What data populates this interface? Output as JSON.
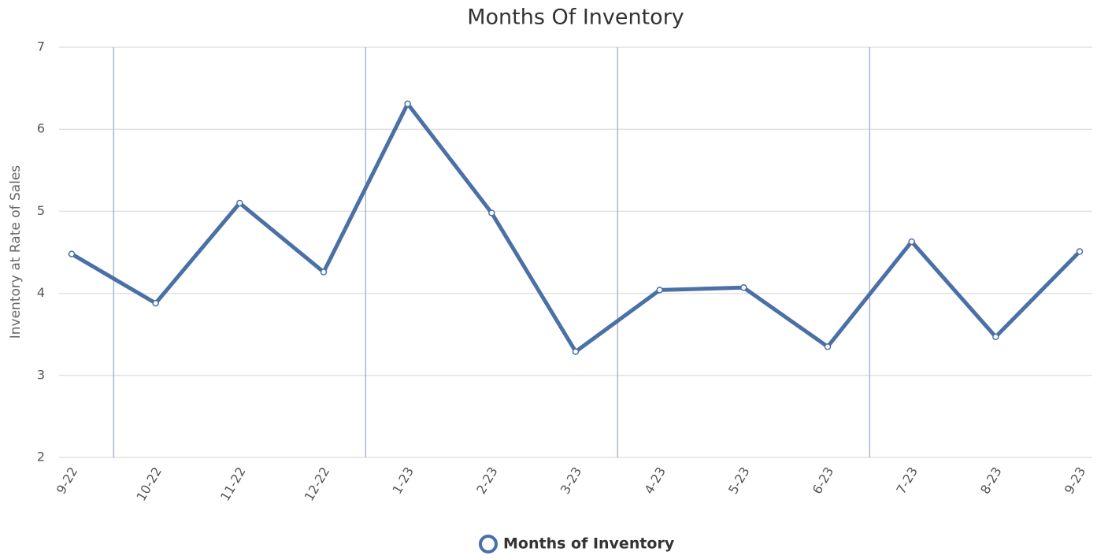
{
  "chart_data": {
    "type": "line",
    "title": "Months Of Inventory",
    "y_label": "Inventory at Rate of Sales",
    "categories": [
      "9-22",
      "10-22",
      "11-22",
      "12-22",
      "1-23",
      "2-23",
      "3-23",
      "4-23",
      "5-23",
      "6-23",
      "7-23",
      "8-23",
      "9-23"
    ],
    "series": [
      {
        "name": "Months of Inventory",
        "color": "#4a70a6",
        "values": [
          4.48,
          3.88,
          5.1,
          4.26,
          6.31,
          4.98,
          3.29,
          4.04,
          4.07,
          3.35,
          4.63,
          3.47,
          4.51
        ]
      }
    ],
    "ylim": [
      2,
      7
    ],
    "yticks": [
      2,
      3,
      4,
      5,
      6,
      7
    ],
    "grid": true,
    "legend": "bottom"
  }
}
